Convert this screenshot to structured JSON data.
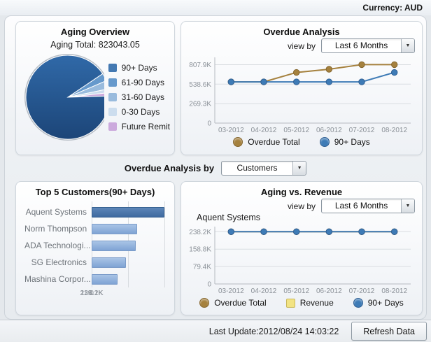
{
  "window": {
    "currency_label": "Currency: AUD"
  },
  "panels": {
    "aging_overview": {
      "title": "Aging Overview",
      "total_label": "Aging Total:",
      "total_value": "823043.05"
    },
    "overdue_analysis": {
      "title": "Overdue Analysis",
      "view_by_label": "view by",
      "view_by_selected": "Last 6 Months"
    },
    "top5": {
      "title": "Top 5 Customers(90+ Days)"
    },
    "aging_vs_revenue": {
      "title": "Aging vs. Revenue",
      "subtitle": "Aquent Systems",
      "view_by_label": "view by",
      "view_by_selected": "Last 6 Months"
    }
  },
  "overdue_by": {
    "label": "Overdue Analysis by",
    "selected": "Customers"
  },
  "footer": {
    "last_update": "Last Update:2012/08/24 14:03:22",
    "refresh_label": "Refresh Data"
  },
  "chart_data": [
    {
      "id": "aging_pie",
      "type": "pie",
      "title": "Aging Overview",
      "total": 823043.05,
      "slices": [
        {
          "label": "90+ Days",
          "percent": 91.0,
          "color": "#4479B2"
        },
        {
          "label": "61-90 Days",
          "percent": 3.0,
          "color": "#6699CC"
        },
        {
          "label": "31-60 Days",
          "percent": 3.2,
          "color": "#99BBDD"
        },
        {
          "label": "0-30 Days",
          "percent": 1.5,
          "color": "#CCDDEE"
        },
        {
          "label": "Future Remit",
          "percent": 1.3,
          "color": "#CCAADD"
        }
      ]
    },
    {
      "id": "overdue_line",
      "type": "line",
      "title": "Overdue Analysis",
      "x": [
        "03-2012",
        "04-2012",
        "05-2012",
        "06-2012",
        "07-2012",
        "08-2012"
      ],
      "y_ticks": [
        {
          "label": "807.9K",
          "value": 807.9
        },
        {
          "label": "538.6K",
          "value": 538.6
        },
        {
          "label": "269.3K",
          "value": 269.3
        },
        {
          "label": "0",
          "value": 0
        }
      ],
      "ymax": 880,
      "legend_position": "bottom",
      "series": [
        {
          "name": "Overdue Total",
          "color": "#A5813E",
          "stroke": "#85662E",
          "marker": "circle",
          "values": [
            570,
            570,
            700,
            745,
            808,
            808
          ]
        },
        {
          "name": "90+ Days",
          "color": "#3E7BB6",
          "stroke": "#2F5F93",
          "marker": "circle",
          "values": [
            570,
            570,
            570,
            570,
            570,
            700
          ]
        }
      ]
    },
    {
      "id": "top5_bar",
      "type": "bar",
      "title": "Top 5 Customers(90+ Days)",
      "orientation": "horizontal",
      "categories": [
        "Aquent Systems",
        "Norm Thompson",
        "ADA Technologi...",
        "SG Electronics",
        "Mashina Corpor..."
      ],
      "values": [
        238.2,
        148,
        145,
        112,
        84
      ],
      "xmax": 238.2,
      "x_ticks": [
        "0",
        "119.1K",
        "238.2K"
      ],
      "selected_index": 0
    },
    {
      "id": "aging_rev_line",
      "type": "line",
      "title": "Aging vs. Revenue",
      "subtitle": "Aquent Systems",
      "x": [
        "03-2012",
        "04-2012",
        "05-2012",
        "06-2012",
        "07-2012",
        "08-2012"
      ],
      "y_ticks": [
        {
          "label": "238.2K",
          "value": 238.2
        },
        {
          "label": "158.8K",
          "value": 158.8
        },
        {
          "label": "79.4K",
          "value": 79.4
        },
        {
          "label": "0",
          "value": 0
        }
      ],
      "ymax": 252,
      "legend_position": "bottom",
      "series": [
        {
          "name": "Overdue Total",
          "color": "#A5813E",
          "stroke": "#85662E",
          "marker": "circle",
          "values": [
            238.2,
            238.2,
            238.2,
            238.2,
            238.2,
            238.2
          ]
        },
        {
          "name": "Revenue",
          "color": "#F2E383",
          "stroke": "#C9B85A",
          "marker": "square",
          "values": null
        },
        {
          "name": "90+ Days",
          "color": "#3E7BB6",
          "stroke": "#2F5F93",
          "marker": "circle",
          "values": [
            238.2,
            238.2,
            238.2,
            238.2,
            238.2,
            238.2
          ]
        }
      ]
    }
  ]
}
